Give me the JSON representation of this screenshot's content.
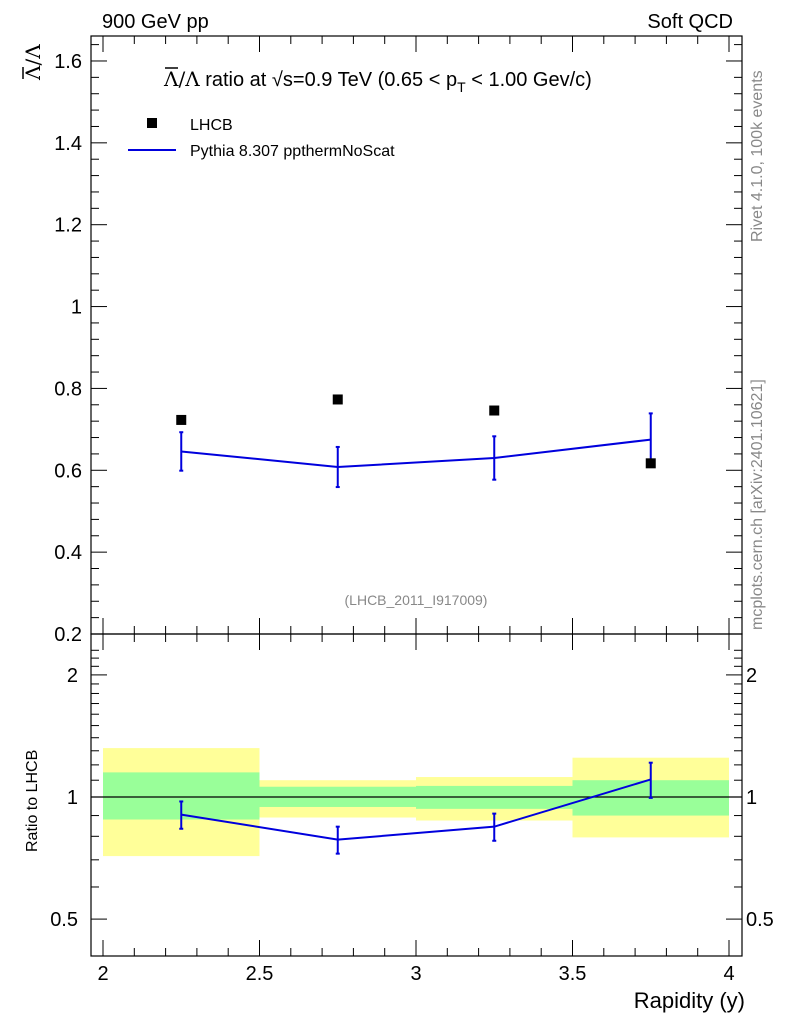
{
  "header": {
    "left": "900 GeV pp",
    "right": "Soft QCD"
  },
  "side_text": {
    "rivet": "Rivet 4.1.0,  100k events",
    "mcplots": "mcplots.cern.ch [arXiv:2401.10621]"
  },
  "chart_data": {
    "type": "line",
    "title": {
      "lambda_bar": "Λ",
      "lambda_slash": "/Λ",
      "text_a": " ratio at ",
      "sqrt": "√",
      "s_label": "s",
      "text_b": "=0.9 TeV (0.65 < p",
      "pt_sub": "T",
      "text_c": " < 1.00 Gev/c)"
    },
    "ylabel_top": {
      "lambda_bar": "Λ",
      "lambda_slash": "/Λ"
    },
    "ylabel_bottom": "Ratio to LHCB",
    "xlabel": "Rapidity (y)",
    "analysis_id": "(LHCB_2011_I917009)",
    "xlim": [
      2,
      4
    ],
    "ylim_top": [
      0.2,
      1.67
    ],
    "ylim_bottom": [
      0.4,
      2.3
    ],
    "x_ticks": [
      2,
      2.5,
      3,
      3.5,
      4
    ],
    "x_tick_labels": [
      "2",
      "2.5",
      "3",
      "3.5",
      "4"
    ],
    "y_ticks_top": [
      0.2,
      0.4,
      0.6,
      0.8,
      1,
      1.2,
      1.4,
      1.6
    ],
    "y_tick_labels_top": [
      "0.2",
      "0.4",
      "0.6",
      "0.8",
      "1",
      "1.2",
      "1.4",
      "1.6"
    ],
    "y_ticks_bottom": [
      0.5,
      1,
      2
    ],
    "y_tick_labels_bottom": [
      "0.5",
      "1",
      "2"
    ],
    "legend": {
      "data_label": "LHCB",
      "mc_label": "Pythia 8.307 ppthermNoScat"
    },
    "colors": {
      "data": "#000000",
      "mc": "#0000dd",
      "band_inner": "#99ff99",
      "band_outer": "#ffff99"
    },
    "bins": [
      [
        2.0,
        2.5
      ],
      [
        2.5,
        3.0
      ],
      [
        3.0,
        3.5
      ],
      [
        3.5,
        4.0
      ]
    ],
    "data": {
      "name": "LHCB",
      "x": [
        2.25,
        2.75,
        3.25,
        3.75
      ],
      "y": [
        0.723,
        0.773,
        0.746,
        0.617
      ]
    },
    "mc": {
      "name": "Pythia 8.307 ppthermNoScat",
      "x": [
        2.25,
        2.75,
        3.25,
        3.75
      ],
      "y": [
        0.646,
        0.608,
        0.63,
        0.675
      ],
      "err_low": [
        0.047,
        0.049,
        0.053,
        0.064
      ],
      "err_high": [
        0.047,
        0.049,
        0.053,
        0.064
      ]
    },
    "ratio": {
      "x": [
        2.25,
        2.75,
        3.25,
        3.75
      ],
      "y": [
        0.905,
        0.785,
        0.845,
        1.105
      ],
      "err_low": [
        0.07,
        0.06,
        0.065,
        0.11
      ],
      "err_high": [
        0.07,
        0.06,
        0.065,
        0.11
      ]
    },
    "ratio_band_inner": [
      [
        0.88,
        1.15
      ],
      [
        0.945,
        1.06
      ],
      [
        0.935,
        1.065
      ],
      [
        0.9,
        1.1
      ]
    ],
    "ratio_band_outer": [
      [
        0.715,
        1.32
      ],
      [
        0.89,
        1.1
      ],
      [
        0.875,
        1.12
      ],
      [
        0.795,
        1.25
      ]
    ]
  }
}
